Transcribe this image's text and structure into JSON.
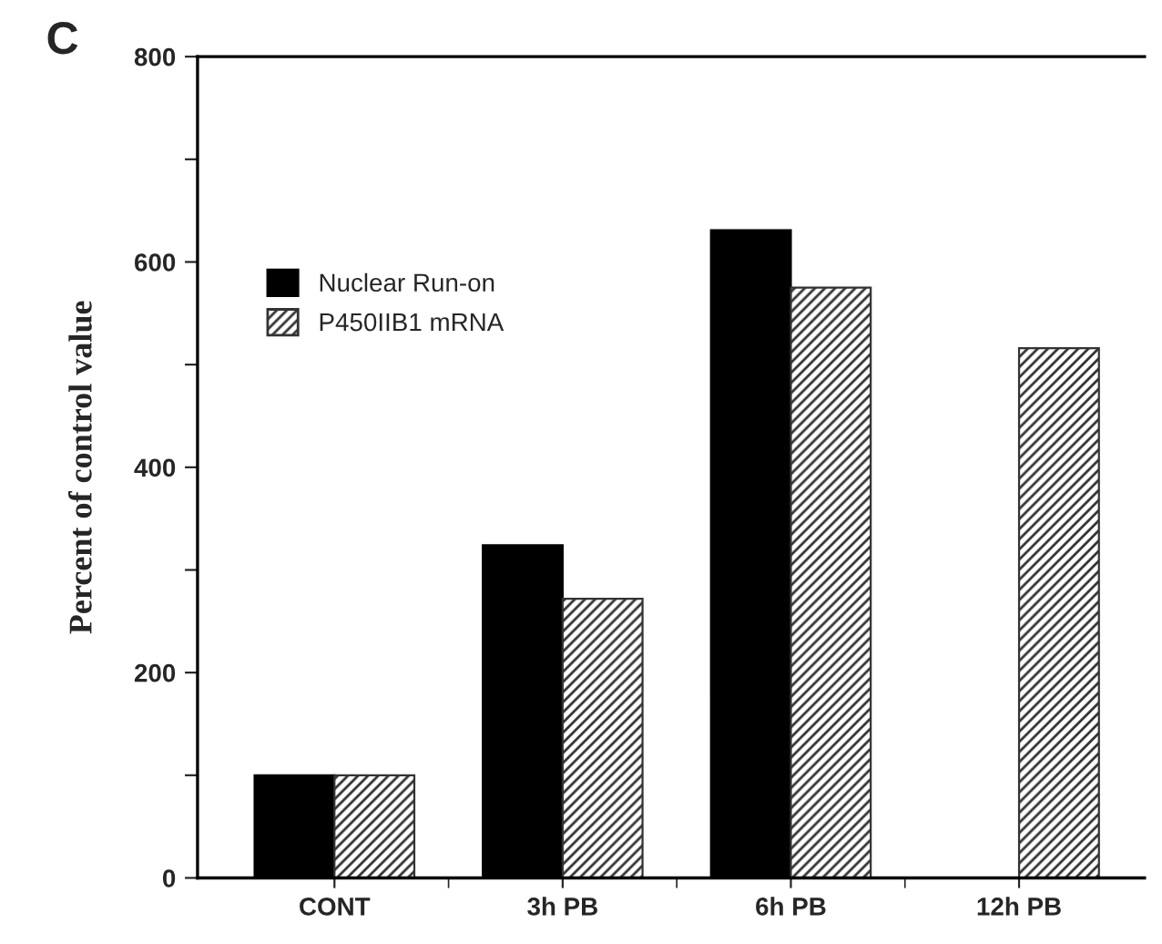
{
  "chart_data": {
    "type": "bar",
    "title": "C",
    "ylabel": "Percent of control value",
    "categories": [
      "CONT",
      "3h PB",
      "6h PB",
      "12h PB"
    ],
    "series": [
      {
        "name": "Nuclear Run-on",
        "color": "#000000",
        "values": [
          100,
          324,
          631,
          null
        ]
      },
      {
        "name": "P450IIB1 mRNA",
        "color": "#333333",
        "values": [
          100,
          272,
          575,
          516
        ]
      }
    ],
    "ylim": [
      0,
      800
    ],
    "yticks": [
      0,
      {
        "value": 100,
        "label": null
      },
      200,
      {
        "value": 300,
        "label": null
      },
      400,
      {
        "value": 500,
        "label": null
      },
      600,
      {
        "value": 700,
        "label": null
      },
      800
    ],
    "grid": false,
    "legend": "left"
  }
}
